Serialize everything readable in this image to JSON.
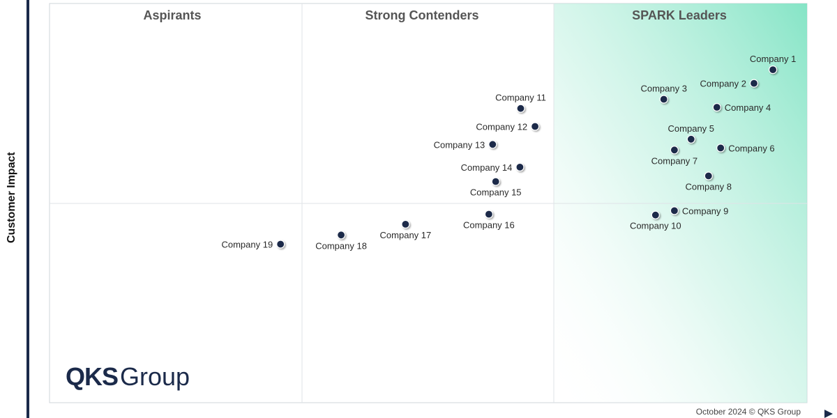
{
  "chart_data": {
    "type": "scatter",
    "ylabel": "Customer Impact",
    "xlabel": "",
    "quadrants": [
      "Aspirants",
      "Strong Contenders",
      "SPARK Leaders"
    ],
    "points": [
      {
        "name": "Company 1",
        "x": 9.55,
        "y": 8.34,
        "label_pos": "above"
      },
      {
        "name": "Company 2",
        "x": 9.3,
        "y": 8.0,
        "label_pos": "left"
      },
      {
        "name": "Company 3",
        "x": 8.11,
        "y": 7.6,
        "label_pos": "above"
      },
      {
        "name": "Company 4",
        "x": 8.81,
        "y": 7.4,
        "label_pos": "right"
      },
      {
        "name": "Company 5",
        "x": 8.47,
        "y": 6.6,
        "label_pos": "above"
      },
      {
        "name": "Company 6",
        "x": 8.86,
        "y": 6.38,
        "label_pos": "right"
      },
      {
        "name": "Company 7",
        "x": 8.25,
        "y": 6.33,
        "label_pos": "below"
      },
      {
        "name": "Company 8",
        "x": 8.7,
        "y": 5.68,
        "label_pos": "below"
      },
      {
        "name": "Company 9",
        "x": 8.25,
        "y": 4.81,
        "label_pos": "right"
      },
      {
        "name": "Company 10",
        "x": 8.0,
        "y": 4.7,
        "label_pos": "below"
      },
      {
        "name": "Company 11",
        "x": 6.22,
        "y": 7.37,
        "label_pos": "above"
      },
      {
        "name": "Company 12",
        "x": 6.41,
        "y": 6.92,
        "label_pos": "left"
      },
      {
        "name": "Company 13",
        "x": 5.85,
        "y": 6.47,
        "label_pos": "left"
      },
      {
        "name": "Company 14",
        "x": 6.21,
        "y": 5.9,
        "label_pos": "left"
      },
      {
        "name": "Company 15",
        "x": 5.89,
        "y": 5.54,
        "label_pos": "below"
      },
      {
        "name": "Company 16",
        "x": 5.8,
        "y": 4.72,
        "label_pos": "below"
      },
      {
        "name": "Company 17",
        "x": 4.7,
        "y": 4.47,
        "label_pos": "below"
      },
      {
        "name": "Company 18",
        "x": 3.85,
        "y": 4.2,
        "label_pos": "below"
      },
      {
        "name": "Company 19",
        "x": 3.05,
        "y": 3.97,
        "label_pos": "left"
      }
    ],
    "xlim": [
      0,
      10
    ],
    "ylim": [
      0,
      10
    ],
    "grid": true,
    "colors": {
      "point": "#1b2a4a",
      "leader_gradient": "#7fe3c3"
    }
  },
  "branding": {
    "logo_bold": "QKS",
    "logo_light": "Group"
  },
  "footer": "October 2024 © QKS Group"
}
